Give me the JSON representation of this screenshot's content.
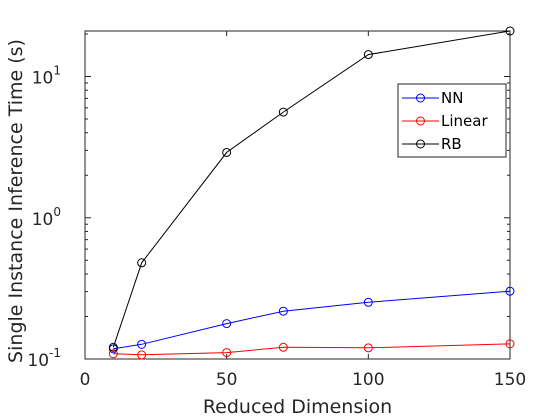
{
  "chart_data": {
    "type": "line",
    "xlabel": "Reduced Dimension",
    "ylabel": "Single Instance Inference Time (s)",
    "xlim": [
      0,
      150
    ],
    "ylim": [
      0.1,
      21
    ],
    "yscale": "log",
    "x_ticks": [
      "0",
      "50",
      "100",
      "150"
    ],
    "y_ticks": [
      {
        "base": "10",
        "exp": "-1"
      },
      {
        "base": "10",
        "exp": "0"
      },
      {
        "base": "10",
        "exp": "1"
      }
    ],
    "grid": false,
    "legend_placement": "top-right",
    "x": [
      10,
      20,
      50,
      70,
      100,
      150
    ],
    "series": [
      {
        "name": "NN",
        "color": "#0000ff",
        "values": [
          0.118,
          0.127,
          0.178,
          0.218,
          0.252,
          0.302
        ]
      },
      {
        "name": "Linear",
        "color": "#ff0000",
        "values": [
          0.109,
          0.107,
          0.111,
          0.121,
          0.12,
          0.128
        ]
      },
      {
        "name": "RB",
        "color": "#000000",
        "values": [
          0.121,
          0.48,
          2.9,
          5.6,
          14.3,
          21.0
        ]
      }
    ]
  }
}
